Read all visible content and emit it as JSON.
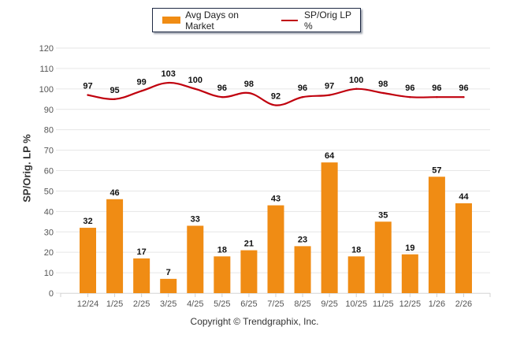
{
  "chart_data": {
    "type": "bar",
    "title": "",
    "categories": [
      "12/24",
      "1/25",
      "2/25",
      "3/25",
      "4/25",
      "5/25",
      "6/25",
      "7/25",
      "8/25",
      "9/25",
      "10/25",
      "11/25",
      "12/25",
      "1/26",
      "2/26"
    ],
    "series": [
      {
        "name": "Avg Days on Market",
        "type": "bar",
        "color": "#f08c14",
        "values": [
          32,
          46,
          17,
          7,
          33,
          18,
          21,
          43,
          23,
          64,
          18,
          35,
          19,
          57,
          44
        ]
      },
      {
        "name": "SP/Orig LP %",
        "type": "line",
        "color": "#c0000d",
        "values": [
          97,
          95,
          99,
          103,
          100,
          96,
          98,
          92,
          96,
          97,
          100,
          98,
          96,
          96,
          96
        ]
      }
    ],
    "xlabel": "",
    "ylabel": "SP/Orig. LP %",
    "ylim": [
      0,
      120
    ],
    "yticks": [
      0,
      10,
      20,
      30,
      40,
      50,
      60,
      70,
      80,
      90,
      100,
      110,
      120
    ],
    "grid": true,
    "legend_position": "top"
  },
  "legend": {
    "bar_label": "Avg Days on Market",
    "line_label": "SP/Orig LP %"
  },
  "footer": {
    "copyright": "Copyright © Trendgraphix, Inc."
  }
}
